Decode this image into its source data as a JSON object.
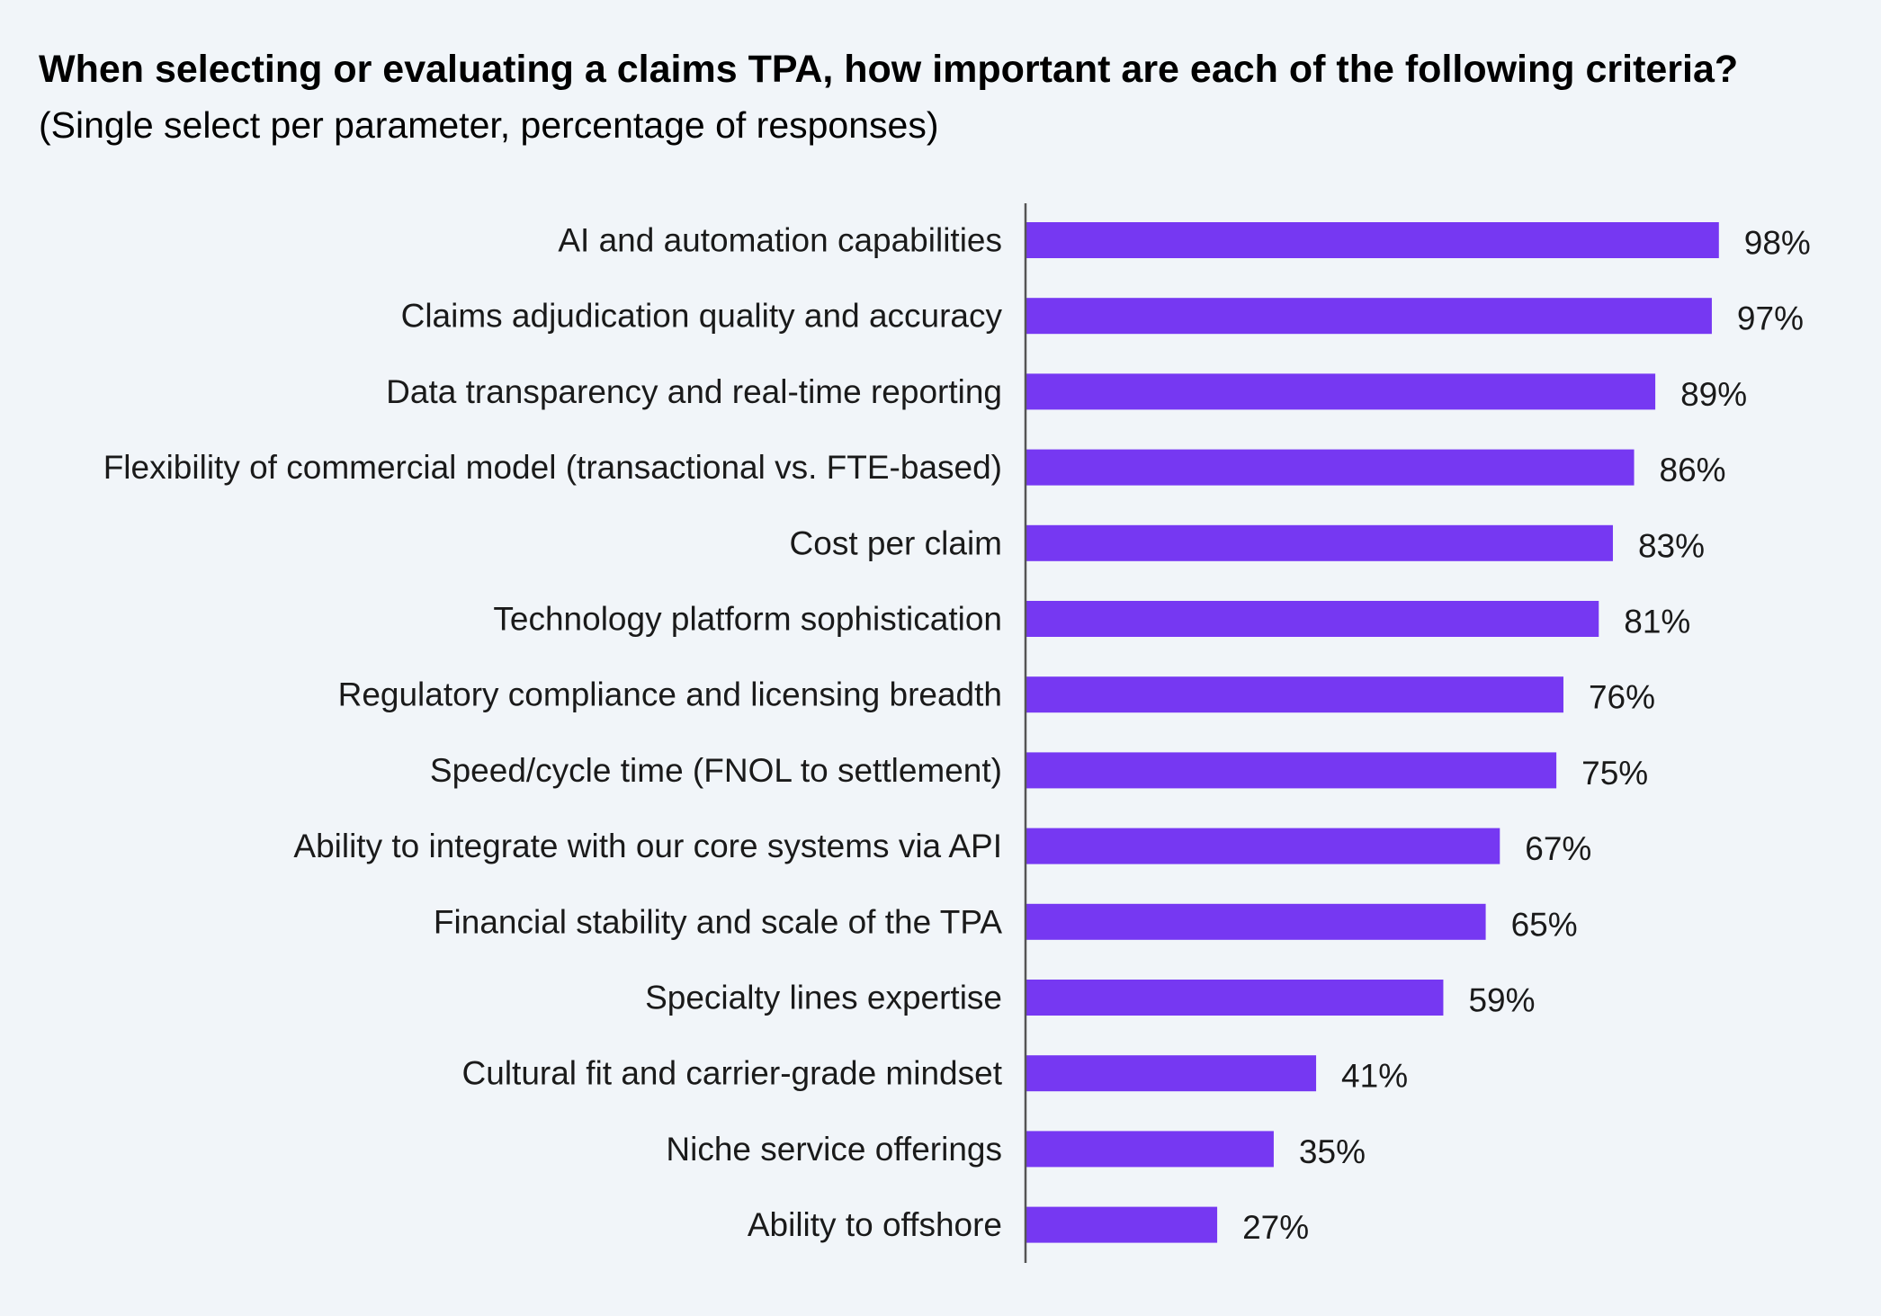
{
  "chart_data": {
    "type": "bar",
    "orientation": "horizontal",
    "title": "When selecting or evaluating a claims TPA, how important are each of the following criteria?",
    "subtitle": "(Single select per parameter, percentage of responses)",
    "categories": [
      "AI and automation capabilities",
      "Claims adjudication quality and accuracy",
      "Data transparency and real-time reporting",
      "Flexibility of commercial model (transactional vs. FTE-based)",
      "Cost per claim",
      "Technology platform sophistication",
      "Regulatory compliance and licensing breadth",
      "Speed/cycle time (FNOL to settlement)",
      "Ability to integrate with our core systems via API",
      "Financial stability and scale of the TPA",
      "Specialty lines expertise",
      "Cultural fit and carrier-grade mindset",
      "Niche service offerings",
      "Ability to offshore"
    ],
    "values": [
      98,
      97,
      89,
      86,
      83,
      81,
      76,
      75,
      67,
      65,
      59,
      41,
      35,
      27
    ],
    "value_labels": [
      "98%",
      "97%",
      "89%",
      "86%",
      "83%",
      "81%",
      "76%",
      "75%",
      "67%",
      "65%",
      "59%",
      "41%",
      "35%",
      "27%"
    ],
    "xlim": [
      0,
      100
    ],
    "grid": false,
    "legend": "none",
    "bar_color": "#7638f2",
    "axis_color": "#555555"
  }
}
